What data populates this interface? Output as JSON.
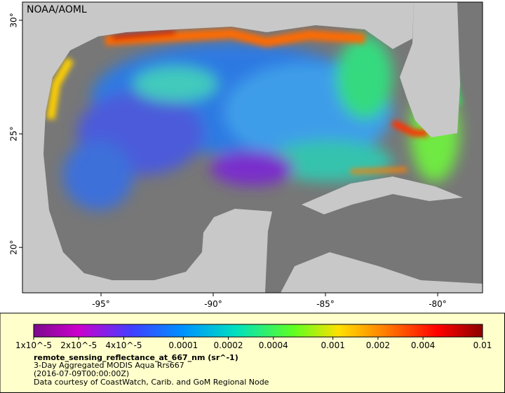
{
  "map": {
    "label": "NOAA/AOML",
    "xlim": [
      -98.5,
      -78
    ],
    "ylim": [
      18,
      30.8
    ],
    "xticks": [
      {
        "value": -95,
        "label": "-95°"
      },
      {
        "value": -90,
        "label": "-90°"
      },
      {
        "value": -85,
        "label": "-85°"
      },
      {
        "value": -80,
        "label": "-80°"
      }
    ],
    "yticks": [
      {
        "value": 20,
        "label": "20°"
      },
      {
        "value": 25,
        "label": "25°"
      },
      {
        "value": 30,
        "label": "30°"
      }
    ]
  },
  "legend": {
    "colorbar": {
      "log_scale": true,
      "lim": [
        1e-05,
        0.01
      ],
      "ticks": [
        {
          "value": 1e-05,
          "label": "1x10^-5"
        },
        {
          "value": 2e-05,
          "label": "2x10^-5"
        },
        {
          "value": 4e-05,
          "label": "4x10^-5"
        },
        0.0001,
        0.0002,
        0.0004,
        0.001,
        0.002,
        0.004,
        0.01
      ]
    },
    "title": "remote_sensing_reflectance_at_667_nm (sr^-1)",
    "lines": [
      "3-Day Aggregated MODIS Aqua Rrs667",
      "(2016-07-09T00:00:00Z)",
      "Data courtesy of CoastWatch, Carib. and GoM Regional Node"
    ]
  }
}
